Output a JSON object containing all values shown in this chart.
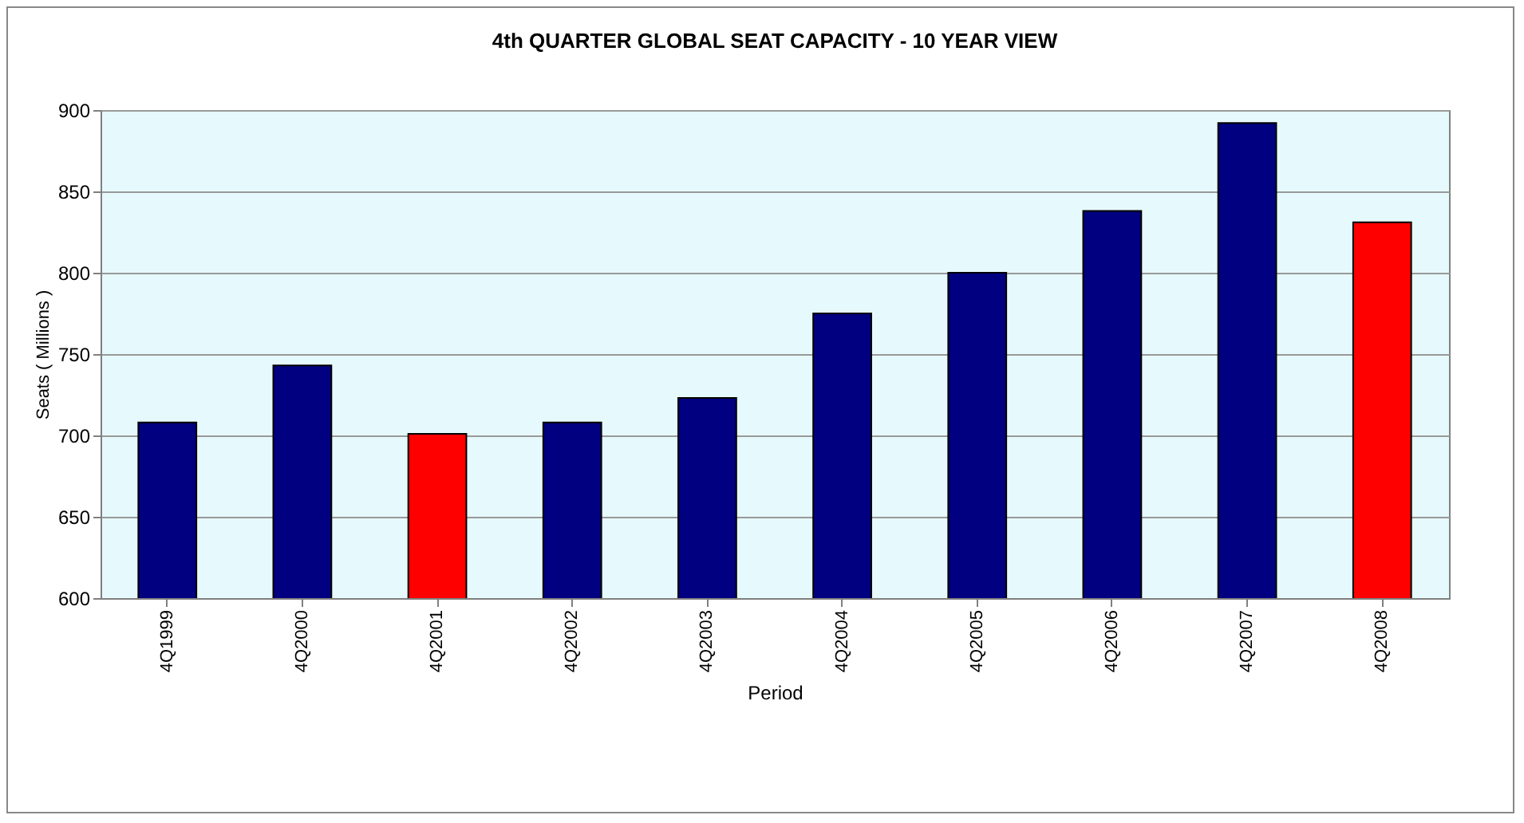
{
  "chart_data": {
    "type": "bar",
    "title": "4th QUARTER GLOBAL SEAT CAPACITY - 10 YEAR VIEW",
    "xlabel": "Period",
    "ylabel": "Seats ( Millions )",
    "categories": [
      "4Q1999",
      "4Q2000",
      "4Q2001",
      "4Q2002",
      "4Q2003",
      "4Q2004",
      "4Q2005",
      "4Q2006",
      "4Q2007",
      "4Q2008"
    ],
    "values": [
      708,
      743,
      701,
      708,
      723,
      775,
      800,
      838,
      892,
      831
    ],
    "colors": [
      "#000080",
      "#000080",
      "#ff0000",
      "#000080",
      "#000080",
      "#000080",
      "#000080",
      "#000080",
      "#000080",
      "#ff0000"
    ],
    "ylim": [
      600,
      900
    ],
    "yticks": [
      600,
      650,
      700,
      750,
      800,
      850,
      900
    ],
    "grid": "y"
  }
}
